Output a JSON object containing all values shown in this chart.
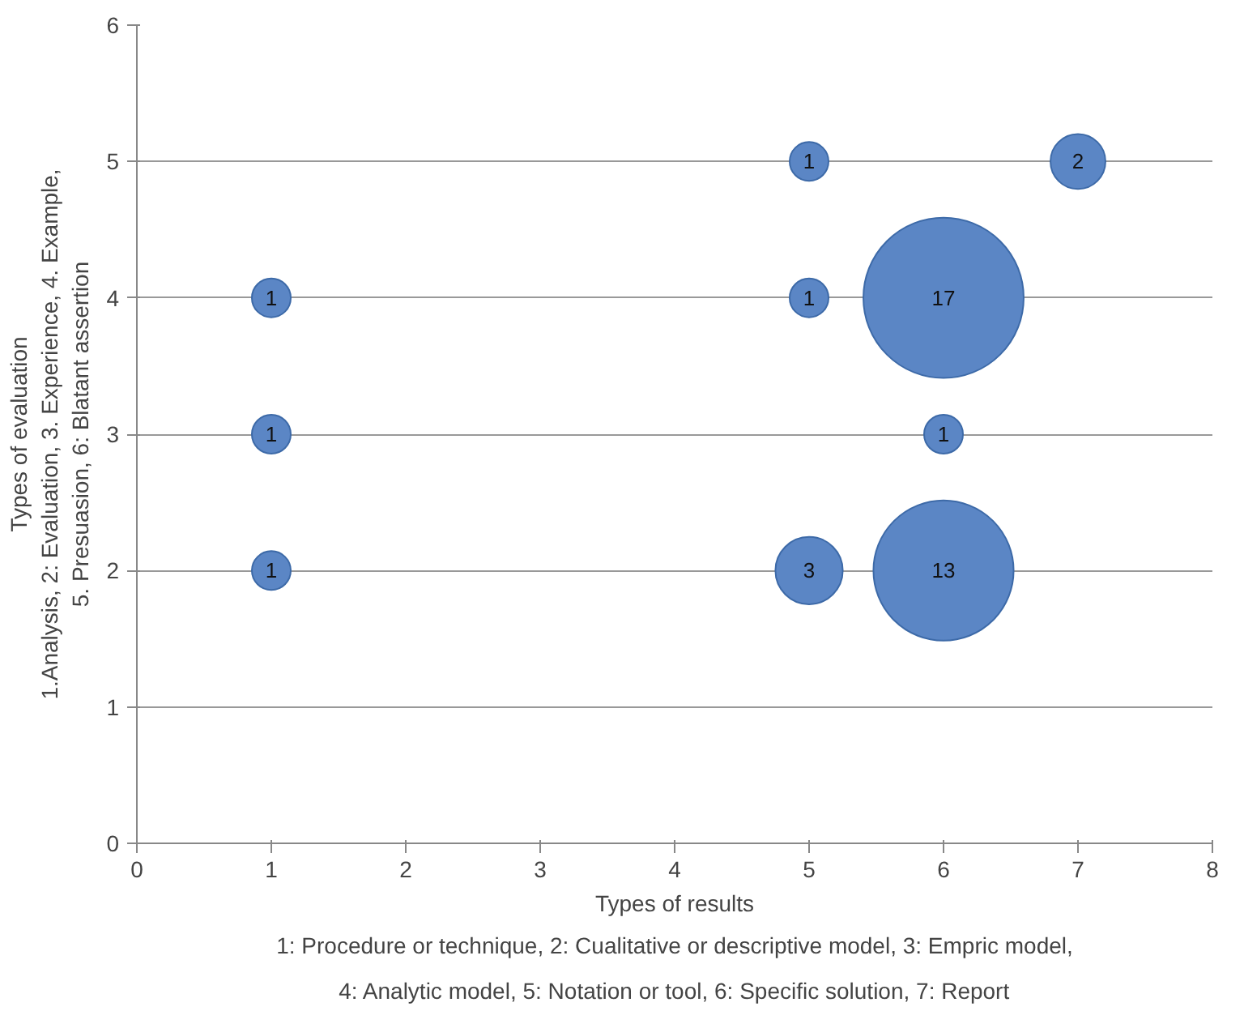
{
  "chart_data": {
    "type": "bubble",
    "xlabel": "Types of results",
    "ylabel": "Types of evaluation\n1.Analysis, 2: Evaluation, 3. Experience, 4. Example,\n5. Presuasion, 6: Blatant assertion",
    "annotations": [
      "1: Procedure or technique, 2: Cualitative or descriptive model, 3: Empric model,\n4: Analytic model, 5: Notation or tool, 6: Specific solution, 7: Report"
    ],
    "x": [
      1,
      1,
      1,
      5,
      5,
      5,
      6,
      6,
      6,
      7
    ],
    "values": [
      4,
      3,
      2,
      5,
      4,
      2,
      4,
      3,
      2,
      5
    ],
    "sizes": [
      1,
      1,
      1,
      1,
      1,
      3,
      17,
      1,
      13,
      2
    ],
    "value_labels": [
      "1",
      "1",
      "1",
      "1",
      "1",
      "3",
      "17",
      "1",
      "13",
      "2"
    ],
    "color": "#5b86c5",
    "xlim": [
      0,
      8
    ],
    "xticks": [
      0,
      1,
      2,
      3,
      4,
      5,
      6,
      7,
      8
    ],
    "ylim": [
      0,
      6
    ],
    "yticks": [
      0,
      1,
      2,
      3,
      4,
      5,
      6
    ],
    "grid": "y"
  }
}
